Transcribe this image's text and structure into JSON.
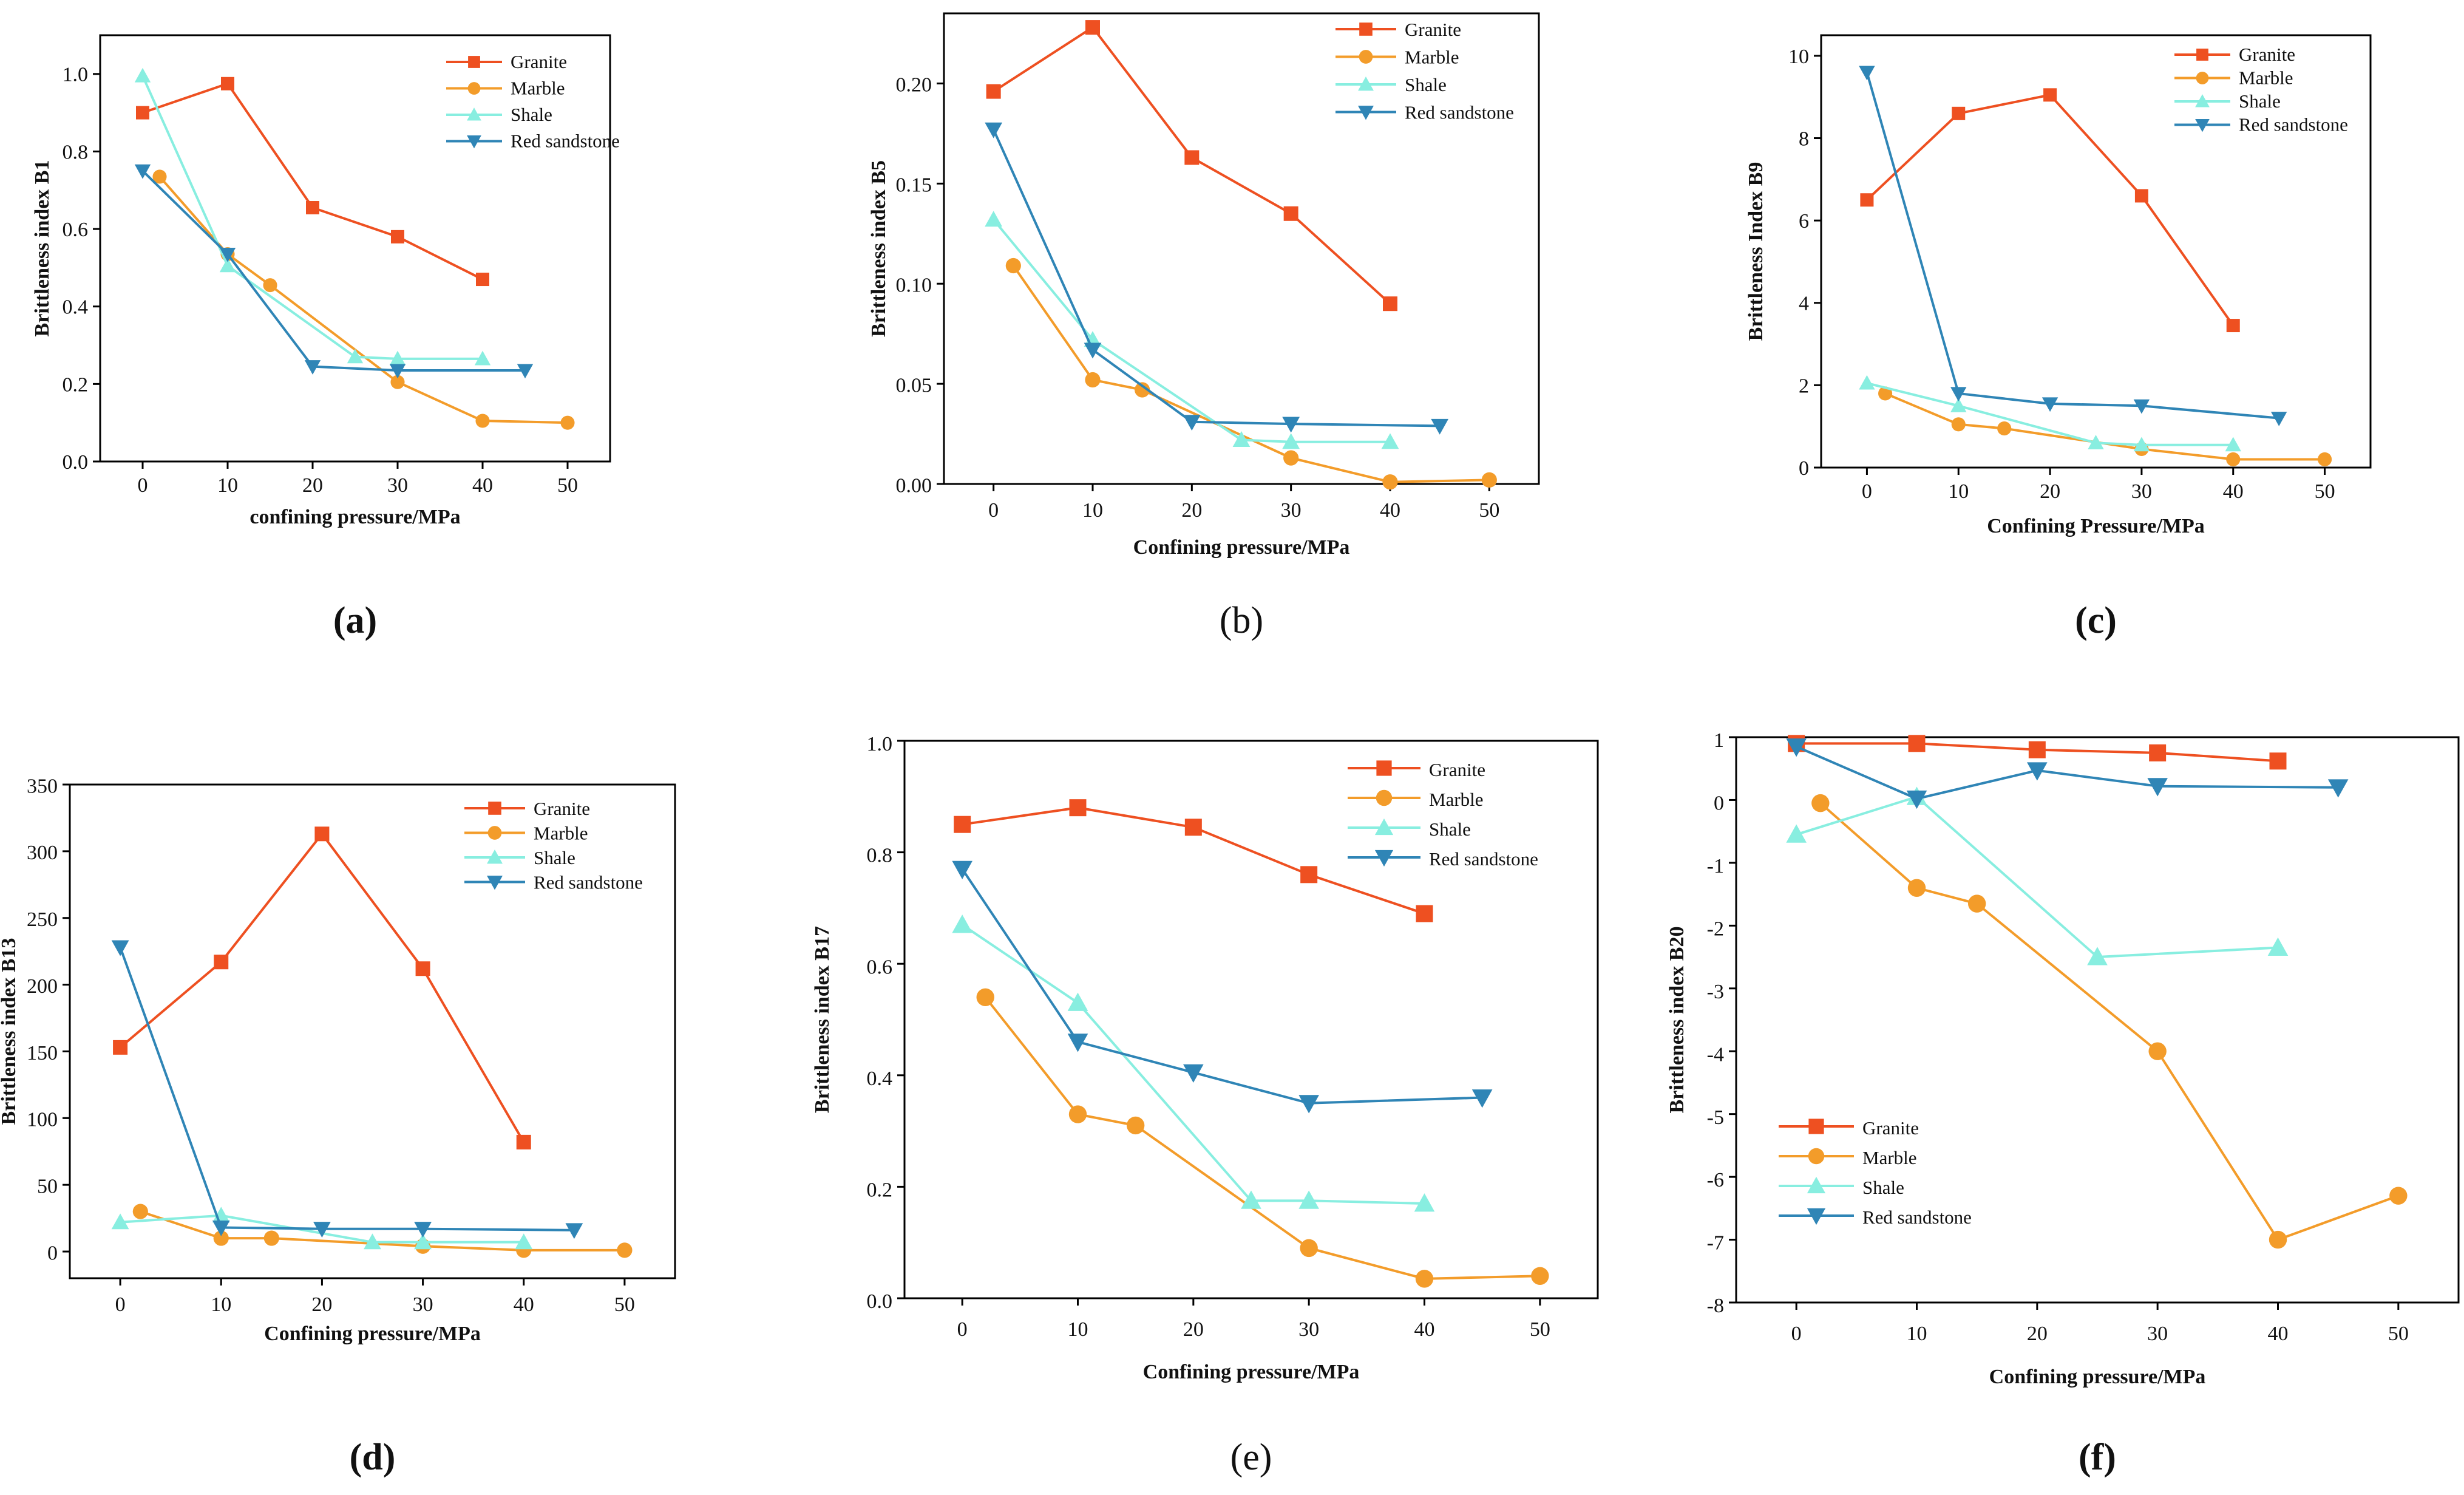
{
  "figure": {
    "series_styles": {
      "Granite": {
        "color": "#ee5021",
        "marker": "square"
      },
      "Marble": {
        "color": "#f39c2a",
        "marker": "circle"
      },
      "Shale": {
        "color": "#88eee0",
        "marker": "triangle-up"
      },
      "Red sandstone": {
        "color": "#2f85b6",
        "marker": "triangle-down"
      }
    }
  },
  "chart_data": [
    {
      "panel": "a",
      "panel_label": "(a)",
      "type": "line",
      "xlabel": "confining pressure/MPa",
      "ylabel": "Brittleness index B1",
      "xlim": [
        -5,
        55
      ],
      "ylim": [
        0,
        1.1
      ],
      "xticks": [
        0,
        10,
        20,
        30,
        40,
        50
      ],
      "yticks": [
        0.0,
        0.2,
        0.4,
        0.6,
        0.8,
        1.0
      ],
      "ytick_labels": [
        "0.0",
        "0.2",
        "0.4",
        "0.6",
        "0.8",
        "1.0"
      ],
      "legend_entries": [
        "Granite",
        "Marble",
        "Shale",
        "Red sandstone"
      ],
      "series": [
        {
          "name": "Granite",
          "x": [
            0,
            10,
            20,
            30,
            40
          ],
          "y": [
            0.9,
            0.975,
            0.655,
            0.58,
            0.47
          ]
        },
        {
          "name": "Marble",
          "x": [
            2,
            10,
            15,
            30,
            40,
            50
          ],
          "y": [
            0.735,
            0.535,
            0.455,
            0.205,
            0.105,
            0.1
          ]
        },
        {
          "name": "Shale",
          "x": [
            0,
            10,
            25,
            30,
            40
          ],
          "y": [
            0.995,
            0.505,
            0.27,
            0.265,
            0.265
          ]
        },
        {
          "name": "Red sandstone",
          "x": [
            0,
            10,
            20,
            30,
            45
          ],
          "y": [
            0.75,
            0.535,
            0.245,
            0.235,
            0.235
          ]
        }
      ]
    },
    {
      "panel": "b",
      "panel_label": "(b)",
      "type": "line",
      "xlabel": "Confining pressure/MPa",
      "ylabel": "Brittleness index B5",
      "xlim": [
        -5,
        55
      ],
      "ylim": [
        0,
        0.235
      ],
      "xticks": [
        0,
        10,
        20,
        30,
        40,
        50
      ],
      "yticks": [
        0.0,
        0.05,
        0.1,
        0.15,
        0.2
      ],
      "ytick_labels": [
        "0.00",
        "0.05",
        "0.10",
        "0.15",
        "0.20"
      ],
      "legend_entries": [
        "Granite",
        "Marble",
        "Shale",
        "Red sandstone"
      ],
      "series": [
        {
          "name": "Granite",
          "x": [
            0,
            10,
            20,
            30,
            40
          ],
          "y": [
            0.196,
            0.228,
            0.163,
            0.135,
            0.09
          ]
        },
        {
          "name": "Marble",
          "x": [
            2,
            10,
            15,
            30,
            40,
            50
          ],
          "y": [
            0.109,
            0.052,
            0.047,
            0.013,
            0.001,
            0.002
          ]
        },
        {
          "name": "Shale",
          "x": [
            0,
            10,
            25,
            30,
            40
          ],
          "y": [
            0.132,
            0.072,
            0.022,
            0.021,
            0.021
          ]
        },
        {
          "name": "Red sandstone",
          "x": [
            0,
            10,
            20,
            30,
            45
          ],
          "y": [
            0.177,
            0.067,
            0.031,
            0.03,
            0.029
          ]
        }
      ]
    },
    {
      "panel": "c",
      "panel_label": "(c)",
      "type": "line",
      "xlabel": "Confining Pressure/MPa",
      "ylabel": "Brittleness Index B9",
      "xlim": [
        -5,
        55
      ],
      "ylim": [
        0,
        10.5
      ],
      "xticks": [
        0,
        10,
        20,
        30,
        40,
        50
      ],
      "yticks": [
        0,
        2,
        4,
        6,
        8,
        10
      ],
      "ytick_labels": [
        "0",
        "2",
        "4",
        "6",
        "8",
        "10"
      ],
      "legend_entries": [
        "Granite",
        "Marble",
        "Shale",
        "Red sandstone"
      ],
      "series": [
        {
          "name": "Granite",
          "x": [
            0,
            10,
            20,
            30,
            40
          ],
          "y": [
            6.5,
            8.6,
            9.05,
            6.6,
            3.45
          ]
        },
        {
          "name": "Marble",
          "x": [
            2,
            10,
            15,
            30,
            40,
            50
          ],
          "y": [
            1.8,
            1.05,
            0.95,
            0.45,
            0.2,
            0.2
          ]
        },
        {
          "name": "Shale",
          "x": [
            0,
            10,
            25,
            30,
            40
          ],
          "y": [
            2.05,
            1.5,
            0.6,
            0.55,
            0.55
          ]
        },
        {
          "name": "Red sandstone",
          "x": [
            0,
            10,
            20,
            30,
            45
          ],
          "y": [
            9.6,
            1.8,
            1.55,
            1.5,
            1.2
          ]
        }
      ]
    },
    {
      "panel": "d",
      "panel_label": "(d)",
      "type": "line",
      "xlabel": "Confining pressure/MPa",
      "ylabel": "Brittleness index B13",
      "xlim": [
        -5,
        55
      ],
      "ylim": [
        -20,
        350
      ],
      "xticks": [
        0,
        10,
        20,
        30,
        40,
        50
      ],
      "yticks": [
        0,
        50,
        100,
        150,
        200,
        250,
        300,
        350
      ],
      "ytick_labels": [
        "0",
        "50",
        "100",
        "150",
        "200",
        "250",
        "300",
        "350"
      ],
      "legend_entries": [
        "Granite",
        "Marble",
        "Shale",
        "Red sandstone"
      ],
      "series": [
        {
          "name": "Granite",
          "x": [
            0,
            10,
            20,
            30,
            40
          ],
          "y": [
            153,
            217,
            313,
            212,
            82
          ]
        },
        {
          "name": "Marble",
          "x": [
            2,
            10,
            15,
            30,
            40,
            50
          ],
          "y": [
            30,
            10,
            10,
            4,
            1,
            1
          ]
        },
        {
          "name": "Shale",
          "x": [
            0,
            10,
            25,
            30,
            40
          ],
          "y": [
            22,
            27,
            7,
            7,
            7
          ]
        },
        {
          "name": "Red sandstone",
          "x": [
            0,
            10,
            20,
            30,
            45
          ],
          "y": [
            228,
            18,
            17,
            17,
            16
          ]
        }
      ]
    },
    {
      "panel": "e",
      "panel_label": "(e)",
      "type": "line",
      "xlabel": "Confining pressure/MPa",
      "ylabel": "Brittleness index B17",
      "xlim": [
        -5,
        55
      ],
      "ylim": [
        0,
        1.0
      ],
      "xticks": [
        0,
        10,
        20,
        30,
        40,
        50
      ],
      "yticks": [
        0.0,
        0.2,
        0.4,
        0.6,
        0.8,
        1.0
      ],
      "ytick_labels": [
        "0.0",
        "0.2",
        "0.4",
        "0.6",
        "0.8",
        "1.0"
      ],
      "legend_entries": [
        "Granite",
        "Marble",
        "Shale",
        "Red sandstone"
      ],
      "series": [
        {
          "name": "Granite",
          "x": [
            0,
            10,
            20,
            30,
            40
          ],
          "y": [
            0.85,
            0.88,
            0.845,
            0.76,
            0.69
          ]
        },
        {
          "name": "Marble",
          "x": [
            2,
            10,
            15,
            30,
            40,
            50
          ],
          "y": [
            0.54,
            0.33,
            0.31,
            0.09,
            0.035,
            0.04
          ]
        },
        {
          "name": "Shale",
          "x": [
            0,
            10,
            25,
            30,
            40
          ],
          "y": [
            0.67,
            0.53,
            0.175,
            0.175,
            0.17
          ]
        },
        {
          "name": "Red sandstone",
          "x": [
            0,
            10,
            20,
            30,
            45
          ],
          "y": [
            0.77,
            0.46,
            0.405,
            0.35,
            0.36
          ]
        }
      ]
    },
    {
      "panel": "f",
      "panel_label": "(f)",
      "type": "line",
      "xlabel": "Confining pressure/MPa",
      "ylabel": "Brittleness index B20",
      "xlim": [
        -5,
        55
      ],
      "ylim": [
        -8,
        1
      ],
      "xticks": [
        0,
        10,
        20,
        30,
        40,
        50
      ],
      "yticks": [
        -8,
        -7,
        -6,
        -5,
        -4,
        -3,
        -2,
        -1,
        0,
        1
      ],
      "ytick_labels": [
        "-8",
        "-7",
        "-6",
        "-5",
        "-4",
        "-3",
        "-2",
        "-1",
        "0",
        "1"
      ],
      "legend_entries": [
        "Granite",
        "Marble",
        "Shale",
        "Red sandstone"
      ],
      "series": [
        {
          "name": "Granite",
          "x": [
            0,
            10,
            20,
            30,
            40
          ],
          "y": [
            0.9,
            0.9,
            0.8,
            0.75,
            0.62
          ]
        },
        {
          "name": "Marble",
          "x": [
            2,
            10,
            15,
            30,
            40,
            50
          ],
          "y": [
            -0.05,
            -1.4,
            -1.65,
            -4.0,
            -7.0,
            -6.3
          ]
        },
        {
          "name": "Shale",
          "x": [
            0,
            10,
            25,
            40
          ],
          "y": [
            -0.55,
            0.05,
            -2.5,
            -2.35
          ]
        },
        {
          "name": "Red sandstone",
          "x": [
            0,
            10,
            20,
            30,
            45
          ],
          "y": [
            0.85,
            0.02,
            0.47,
            0.22,
            0.2
          ]
        }
      ]
    }
  ]
}
